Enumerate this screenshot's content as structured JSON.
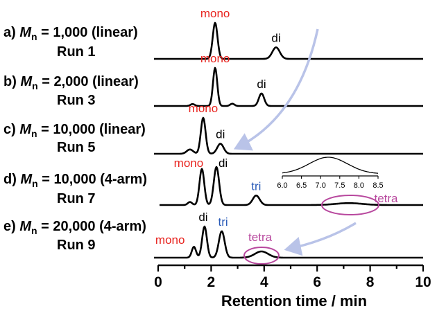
{
  "chart_data": {
    "type": "line",
    "xlabel": "Retention time / min",
    "xlim": [
      0,
      10
    ],
    "xticks": [
      "0",
      "2",
      "4",
      "6",
      "8",
      "10"
    ],
    "colors": {
      "mono": "#e8241f",
      "di": "#000000",
      "tri": "#2a5bb8",
      "tetra": "#b8489e",
      "arrow": "#b9c3e8"
    },
    "series": [
      {
        "label_prefix": "a)",
        "label_m": "M",
        "label_sub": "n",
        "label_value": " = 1,000 (linear)",
        "run": "Run 1",
        "peaks": [
          {
            "x": 2.15,
            "h": 1.0,
            "w": 0.09
          },
          {
            "x": 4.45,
            "h": 0.32,
            "w": 0.14
          }
        ],
        "annotations": [
          {
            "text": "mono",
            "class": "mono",
            "x": 2.15
          },
          {
            "text": "di",
            "class": "di",
            "x": 4.45
          }
        ]
      },
      {
        "label_prefix": "b)",
        "label_m": "M",
        "label_sub": "n",
        "label_value": " = 2,000 (linear)",
        "run": "Run 3",
        "peaks": [
          {
            "x": 1.3,
            "h": 0.05,
            "w": 0.08
          },
          {
            "x": 2.15,
            "h": 1.0,
            "w": 0.08
          },
          {
            "x": 2.8,
            "h": 0.06,
            "w": 0.08
          },
          {
            "x": 3.9,
            "h": 0.33,
            "w": 0.1
          }
        ],
        "annotations": [
          {
            "text": "mono",
            "class": "mono",
            "x": 2.15
          },
          {
            "text": "di",
            "class": "di",
            "x": 3.9
          }
        ]
      },
      {
        "label_prefix": "c)",
        "label_m": "M",
        "label_sub": "n",
        "label_value": " = 10,000 (linear)",
        "run": "Run 5",
        "peaks": [
          {
            "x": 1.2,
            "h": 0.12,
            "w": 0.12
          },
          {
            "x": 1.7,
            "h": 1.0,
            "w": 0.09
          },
          {
            "x": 2.35,
            "h": 0.28,
            "w": 0.12
          }
        ],
        "annotations": [
          {
            "text": "mono",
            "class": "mono",
            "x": 1.7
          },
          {
            "text": "di",
            "class": "di",
            "x": 2.35
          }
        ]
      },
      {
        "label_prefix": "d)",
        "label_m": "M",
        "label_sub": "n",
        "label_value": " = 10,000 (4-arm)",
        "run": "Run 7",
        "peaks": [
          {
            "x": 1.2,
            "h": 0.08,
            "w": 0.08
          },
          {
            "x": 1.65,
            "h": 0.95,
            "w": 0.09
          },
          {
            "x": 2.2,
            "h": 1.0,
            "w": 0.1
          },
          {
            "x": 3.7,
            "h": 0.25,
            "w": 0.13
          },
          {
            "x": 7.2,
            "h": 0.05,
            "w": 0.5
          }
        ],
        "annotations": [
          {
            "text": "mono",
            "class": "mono",
            "x": 1.15
          },
          {
            "text": "di",
            "class": "di",
            "x": 2.45
          },
          {
            "text": "tri",
            "class": "tri",
            "x": 3.7
          },
          {
            "text": "tetra",
            "class": "tetra",
            "x": 8.6
          }
        ]
      },
      {
        "label_prefix": "e)",
        "label_m": "M",
        "label_sub": "n",
        "label_value": " = 20,000 (4-arm)",
        "run": "Run 9",
        "peaks": [
          {
            "x": 1.35,
            "h": 0.35,
            "w": 0.08
          },
          {
            "x": 1.75,
            "h": 1.0,
            "w": 0.09
          },
          {
            "x": 2.4,
            "h": 0.85,
            "w": 0.11
          },
          {
            "x": 3.9,
            "h": 0.2,
            "w": 0.25
          }
        ],
        "annotations": [
          {
            "text": "mono",
            "class": "mono",
            "x": 0.45
          },
          {
            "text": "di",
            "class": "di",
            "x": 1.7
          },
          {
            "text": "tri",
            "class": "tri",
            "x": 2.45
          },
          {
            "text": "tetra",
            "class": "tetra",
            "x": 3.85
          }
        ]
      }
    ],
    "inset": {
      "xlim": [
        6.0,
        8.5
      ],
      "xticks": [
        "6.0",
        "6.5",
        "7.0",
        "7.5",
        "8.0",
        "8.5"
      ],
      "peak": {
        "x": 7.2,
        "w": 0.5
      }
    }
  }
}
